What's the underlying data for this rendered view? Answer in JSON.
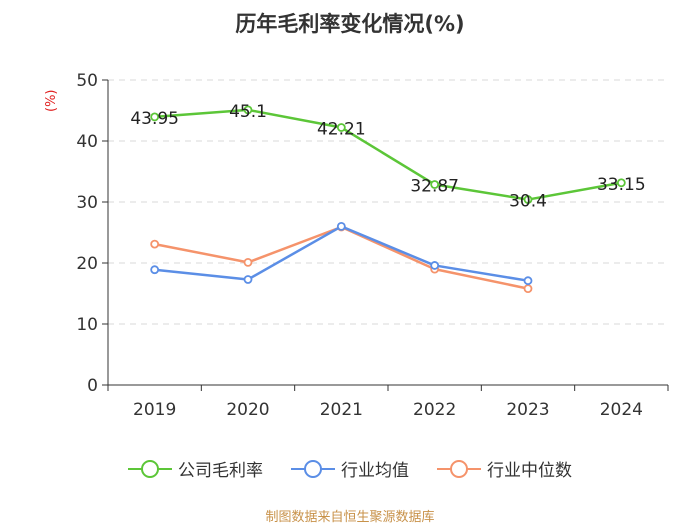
{
  "chart_data": {
    "type": "line",
    "title": "历年毛利率变化情况(%)",
    "ylabel": "(%)",
    "xlabel": "",
    "ylim": [
      0,
      50
    ],
    "yticks": [
      0,
      10,
      20,
      30,
      40,
      50
    ],
    "categories": [
      "2019",
      "2020",
      "2021",
      "2022",
      "2023",
      "2024"
    ],
    "series": [
      {
        "name": "公司毛利率",
        "color": "#5cc638",
        "values": [
          43.95,
          45.1,
          42.21,
          32.87,
          30.4,
          33.15
        ],
        "labels": [
          "43.95",
          "45.1",
          "42.21",
          "32.87",
          "30.4",
          "33.15"
        ]
      },
      {
        "name": "行业均值",
        "color": "#5b8ee6",
        "values": [
          18.9,
          17.3,
          26.0,
          19.6,
          17.1,
          null
        ]
      },
      {
        "name": "行业中位数",
        "color": "#f5936b",
        "values": [
          23.1,
          20.1,
          25.9,
          19.0,
          15.8,
          null
        ]
      }
    ],
    "legend_position": "bottom",
    "grid": true,
    "source": "制图数据来自恒生聚源数据库"
  }
}
